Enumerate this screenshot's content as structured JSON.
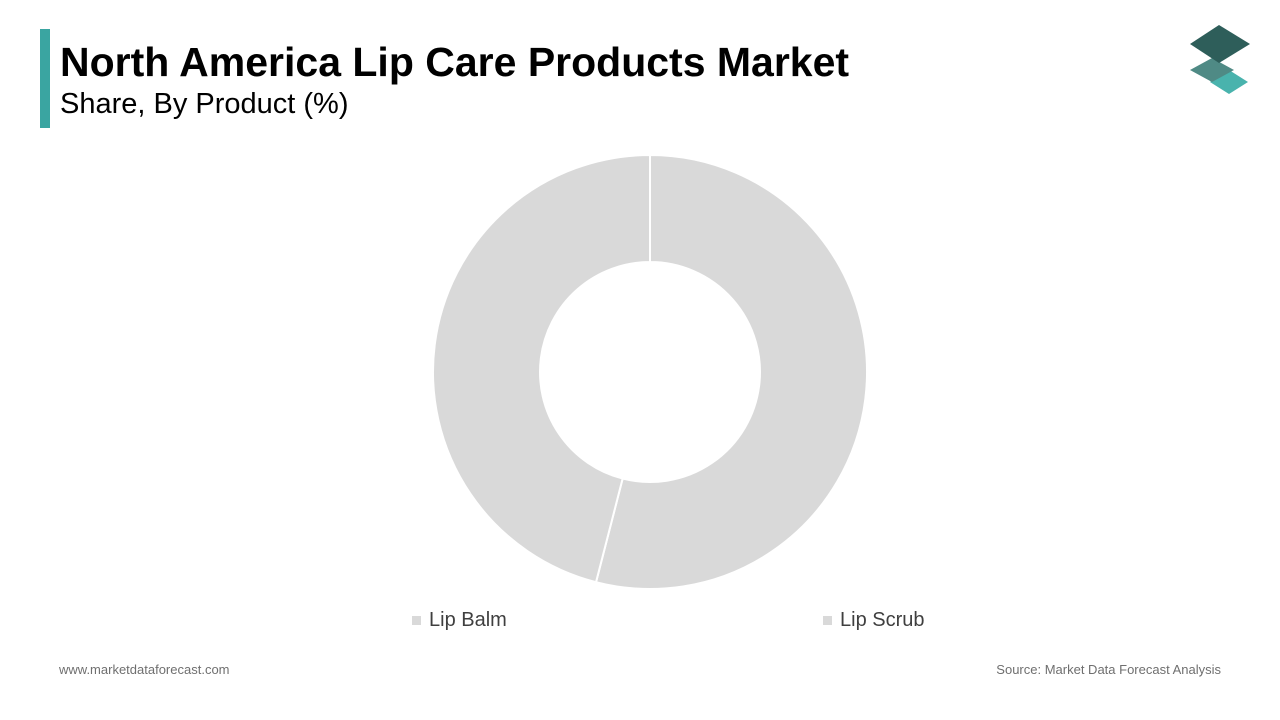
{
  "header": {
    "title": "North America Lip Care Products Market",
    "subtitle": "Share, By Product (%)"
  },
  "logo": {
    "icon": "stacked-layers-logo-icon",
    "colors": [
      "#2e5e5a",
      "#4f8a85",
      "#49b3ad"
    ]
  },
  "chart_data": {
    "type": "pie",
    "style": "donut",
    "title": "",
    "categories": [
      "Lip Balm",
      "Lip Scrub"
    ],
    "values": [
      54,
      46
    ],
    "colors": [
      "#d9d9d9",
      "#d9d9d9"
    ],
    "legend": "bottom"
  },
  "footer": {
    "website": "www.marketdataforecast.com",
    "source": "Source: Market Data Forecast Analysis"
  },
  "colors": {
    "accent": "#3aa5a1",
    "slice": "#d9d9d9",
    "background": "#ffffff"
  }
}
